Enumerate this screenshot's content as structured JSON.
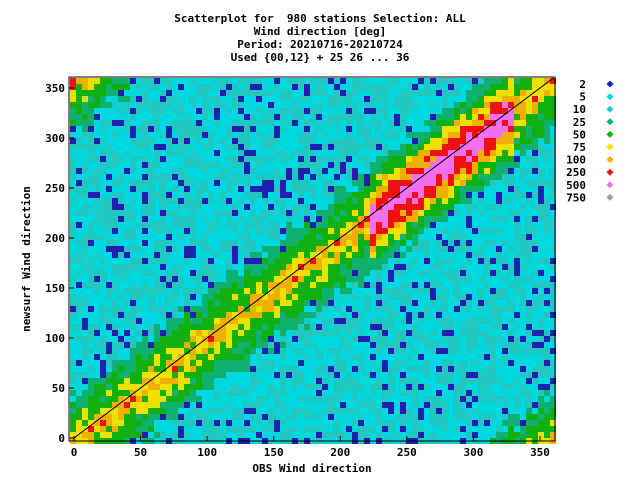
{
  "title_lines": [
    "Scatterplot for  980 stations Selection: ALL",
    "Wind direction [deg]",
    "Period: 20210716-20210724",
    "Used {00,12} + 25 26 ... 36"
  ],
  "chart_data": {
    "type": "heatmap",
    "description_axes": "density scatterplot",
    "xlabel": "OBS Wind direction",
    "ylabel": "newsurf Wind direction",
    "xlim": [
      0,
      360
    ],
    "ylim": [
      0,
      360
    ],
    "x_ticks": [
      0,
      50,
      100,
      150,
      200,
      250,
      300,
      350
    ],
    "y_ticks": [
      0,
      50,
      100,
      150,
      200,
      250,
      300,
      350
    ],
    "grid": false,
    "diagonal_line": true,
    "legend_position": "right",
    "legend": [
      {
        "label": "2",
        "color": "#2020b0"
      },
      {
        "label": "5",
        "color": "#00d8e0"
      },
      {
        "label": "10",
        "color": "#20c8c0"
      },
      {
        "label": "25",
        "color": "#10b070"
      },
      {
        "label": "50",
        "color": "#10b010"
      },
      {
        "label": "75",
        "color": "#f0e000"
      },
      {
        "label": "100",
        "color": "#f0b000"
      },
      {
        "label": "250",
        "color": "#f01010"
      },
      {
        "label": "500",
        "color": "#f070f0"
      },
      {
        "label": "750",
        "color": "#a0a0a0"
      }
    ]
  }
}
